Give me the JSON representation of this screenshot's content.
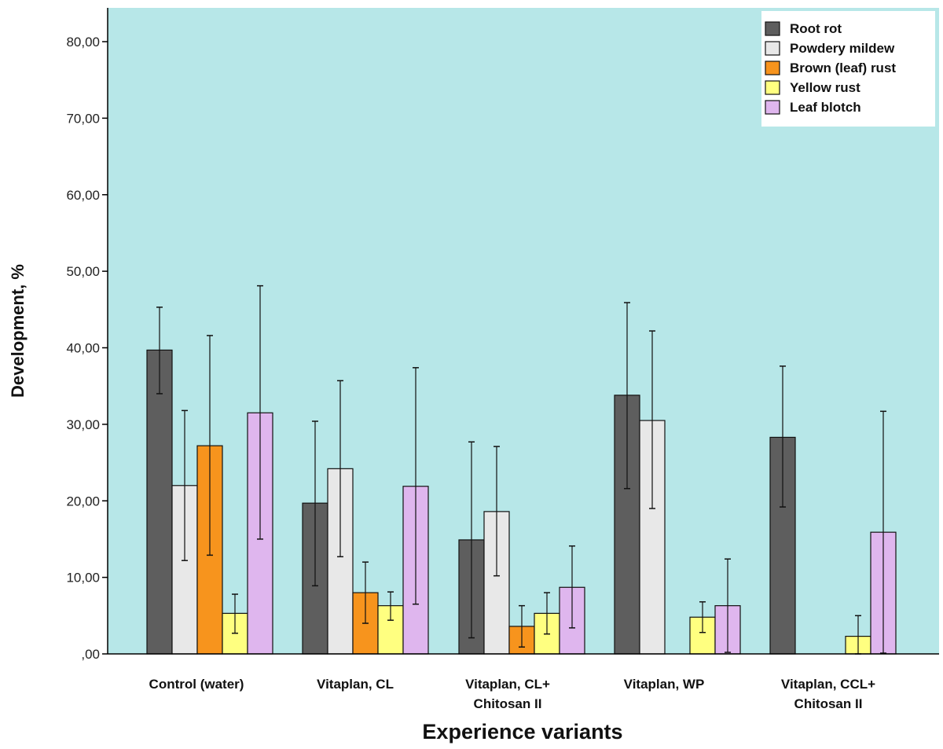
{
  "chart_data": {
    "type": "bar",
    "title": "",
    "xlabel": "Experience variants",
    "ylabel": "Development, %",
    "ylim": [
      0,
      85
    ],
    "yticks": [
      0,
      10,
      20,
      30,
      40,
      50,
      60,
      70,
      80
    ],
    "ytick_labels": [
      ",00",
      "10,00",
      "20,00",
      "30,00",
      "40,00",
      "50,00",
      "60,00",
      "70,00",
      "80,00"
    ],
    "categories": [
      [
        "Control (water)"
      ],
      [
        "Vitaplan,  CL"
      ],
      [
        "Vitaplan, CL+",
        "Chitosan II"
      ],
      [
        "Vitaplan, WP"
      ],
      [
        "Vitaplan, CCL+",
        "Chitosan II"
      ]
    ],
    "legend_position": "top-right",
    "series": [
      {
        "name": "Root rot",
        "color": "#5e5e5e",
        "values": [
          39.7,
          19.7,
          14.9,
          33.8,
          28.3
        ],
        "error_low": [
          34.0,
          8.9,
          2.1,
          21.6,
          19.2
        ],
        "error_high": [
          45.3,
          30.4,
          27.7,
          45.9,
          37.6
        ]
      },
      {
        "name": "Powdery mildew",
        "color": "#e8e8e8",
        "values": [
          22.0,
          24.2,
          18.6,
          30.5,
          0
        ],
        "error_low": [
          12.2,
          12.7,
          10.2,
          19.0,
          null
        ],
        "error_high": [
          31.8,
          35.7,
          27.1,
          42.2,
          null
        ]
      },
      {
        "name": "Brown (leaf) rust",
        "color": "#f7941d",
        "values": [
          27.2,
          8.0,
          3.6,
          0,
          0
        ],
        "error_low": [
          12.9,
          4.0,
          0.9,
          null,
          null
        ],
        "error_high": [
          41.6,
          12.0,
          6.3,
          null,
          null
        ]
      },
      {
        "name": "Yellow rust",
        "color": "#ffff80",
        "values": [
          5.3,
          6.3,
          5.3,
          4.8,
          2.3
        ],
        "error_low": [
          2.7,
          4.4,
          2.6,
          2.8,
          0.0
        ],
        "error_high": [
          7.8,
          8.1,
          8.0,
          6.8,
          5.0
        ]
      },
      {
        "name": "Leaf blotch",
        "color": "#dfb6ee",
        "values": [
          31.5,
          21.9,
          8.7,
          6.3,
          15.9
        ],
        "error_low": [
          15.0,
          6.5,
          3.4,
          0.2,
          0.1
        ],
        "error_high": [
          48.1,
          37.4,
          14.1,
          12.4,
          31.7
        ]
      }
    ]
  },
  "colors": {
    "plot_background": "#b7e7e8",
    "bar_stroke": "#111111",
    "axis": "#000000"
  }
}
